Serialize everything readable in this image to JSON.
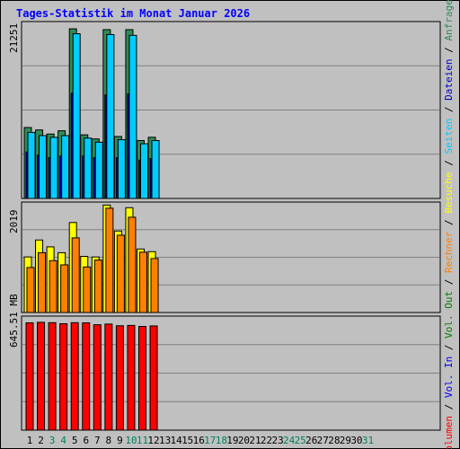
{
  "title": "Tages-Statistik im Monat Januar 2026",
  "chart_data": [
    {
      "type": "bar",
      "panel": "hits",
      "categories": [
        "1",
        "2",
        "3",
        "4",
        "5",
        "6",
        "7",
        "8",
        "9",
        "10",
        "11",
        "12",
        "13",
        "14",
        "15",
        "16",
        "17",
        "18",
        "19",
        "20",
        "21",
        "22",
        "23",
        "24",
        "25",
        "26",
        "27",
        "28",
        "29",
        "30",
        "31"
      ],
      "ymax_label": "21251",
      "ylim": [
        0,
        21251
      ],
      "grid": true,
      "series": [
        {
          "name": "Anfragen",
          "color": "#2e8b57",
          "values": [
            8700,
            8400,
            7900,
            8300,
            20800,
            7800,
            7300,
            20700,
            7600,
            20700,
            7100,
            7500,
            0,
            0,
            0,
            0,
            0,
            0,
            0,
            0,
            0,
            0,
            0,
            0,
            0,
            0,
            0,
            0,
            0,
            0,
            0
          ]
        },
        {
          "name": "Dateien",
          "color": "#0000cc",
          "values": [
            5700,
            5300,
            5000,
            5200,
            12900,
            5200,
            5000,
            12700,
            5000,
            12800,
            4700,
            4900,
            0,
            0,
            0,
            0,
            0,
            0,
            0,
            0,
            0,
            0,
            0,
            0,
            0,
            0,
            0,
            0,
            0,
            0,
            0
          ]
        },
        {
          "name": "Seiten",
          "color": "#00ccff",
          "values": [
            8100,
            7700,
            7500,
            7700,
            20200,
            7400,
            6900,
            20100,
            7200,
            20000,
            6700,
            7100,
            0,
            0,
            0,
            0,
            0,
            0,
            0,
            0,
            0,
            0,
            0,
            0,
            0,
            0,
            0,
            0,
            0,
            0,
            0
          ]
        }
      ]
    },
    {
      "type": "bar",
      "panel": "visits",
      "categories": [
        "1",
        "2",
        "3",
        "4",
        "5",
        "6",
        "7",
        "8",
        "9",
        "10",
        "11",
        "12",
        "13",
        "14",
        "15",
        "16",
        "17",
        "18",
        "19",
        "20",
        "21",
        "22",
        "23",
        "24",
        "25",
        "26",
        "27",
        "28",
        "29",
        "30",
        "31"
      ],
      "ymax_label": "2019",
      "ylim": [
        0,
        2019
      ],
      "grid": true,
      "series": [
        {
          "name": "Besuche",
          "color": "#ffff00",
          "values": [
            1050,
            1370,
            1240,
            1130,
            1700,
            1060,
            1050,
            2030,
            1540,
            1980,
            1200,
            1150,
            0,
            0,
            0,
            0,
            0,
            0,
            0,
            0,
            0,
            0,
            0,
            0,
            0,
            0,
            0,
            0,
            0,
            0,
            0
          ]
        },
        {
          "name": "Rechner",
          "color": "#ff8000",
          "values": [
            850,
            1130,
            980,
            900,
            1410,
            860,
            990,
            1970,
            1460,
            1800,
            1140,
            1020,
            0,
            0,
            0,
            0,
            0,
            0,
            0,
            0,
            0,
            0,
            0,
            0,
            0,
            0,
            0,
            0,
            0,
            0,
            0
          ]
        }
      ]
    },
    {
      "type": "bar",
      "panel": "volume",
      "categories": [
        "1",
        "2",
        "3",
        "4",
        "5",
        "6",
        "7",
        "8",
        "9",
        "10",
        "11",
        "12",
        "13",
        "14",
        "15",
        "16",
        "17",
        "18",
        "19",
        "20",
        "21",
        "22",
        "23",
        "24",
        "25",
        "26",
        "27",
        "28",
        "29",
        "30",
        "31"
      ],
      "ymax_label": "645.51 MB",
      "ylim": [
        0,
        645.51
      ],
      "grid": true,
      "series": [
        {
          "name": "Volumen",
          "color": "#ff0000",
          "values": [
            627,
            630,
            628,
            622,
            628,
            627,
            616,
            620,
            610,
            612,
            606,
            609,
            0,
            0,
            0,
            0,
            0,
            0,
            0,
            0,
            0,
            0,
            0,
            0,
            0,
            0,
            0,
            0,
            0,
            0,
            0
          ]
        },
        {
          "name": "Vol. In",
          "color": "#0000ff",
          "values": [
            0,
            0,
            0,
            0,
            0,
            0,
            0,
            0,
            0,
            0,
            0,
            0,
            0,
            0,
            0,
            0,
            0,
            0,
            0,
            0,
            0,
            0,
            0,
            0,
            0,
            0,
            0,
            0,
            0,
            0,
            0
          ]
        },
        {
          "name": "Vol. Out",
          "color": "#008000",
          "values": [
            0,
            0,
            0,
            0,
            0,
            0,
            0,
            0,
            0,
            0,
            0,
            0,
            0,
            0,
            0,
            0,
            0,
            0,
            0,
            0,
            0,
            0,
            0,
            0,
            0,
            0,
            0,
            0,
            0,
            0,
            0
          ]
        }
      ]
    }
  ],
  "weekend_days": [
    3,
    4,
    10,
    11,
    17,
    18,
    24,
    25,
    31
  ],
  "colors": {
    "weekday_label": "#000000",
    "weekend_label": "#00805f",
    "title": "#0000ff",
    "background": "#c0c0c0",
    "grid": "#808080"
  }
}
